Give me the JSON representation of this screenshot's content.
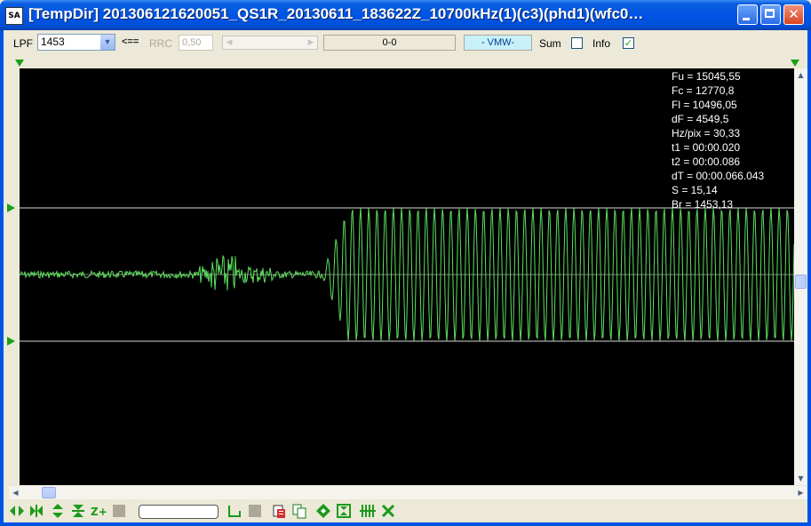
{
  "window": {
    "icon_text": "SA",
    "title": "[TempDir] 201306121620051_QS1R_20130611_183622Z_10700kHz(1)(c3)(phd1)(wfc0…",
    "close_glyph": "✕"
  },
  "toolbar": {
    "lpf_label": "LPF",
    "lpf_value": "1453",
    "apply_arrow": "<==",
    "rrc_label": "RRC",
    "rrc_value": "0,50",
    "range_text": "0-0",
    "mode_text": "- VMW-",
    "sum_label": "Sum",
    "sum_checked": false,
    "info_label": "Info",
    "info_checked": true
  },
  "info_panel": [
    "Fu = 15045,55",
    "Fc = 12770,8",
    "Fl = 10496,05",
    "dF = 4549,5",
    "Hz/pix = 30,33",
    "t1 = 00:00.020",
    "t2 = 00:00.086",
    "dT = 00:00.066.043",
    "S = 15,14",
    "Br = 1453,13"
  ],
  "colors": {
    "trace": "#5ee05e",
    "background": "#000000",
    "marker_lines": "#d8d8d8",
    "markers": "#1aa01a",
    "info_text": "#ffffff"
  },
  "icons": {
    "toolbar": [
      "chevron-down-icon",
      "scroll-left-icon",
      "scroll-right-icon",
      "checkmark-icon"
    ],
    "bottom": [
      "expand-horizontal-icon",
      "compress-horizontal-icon",
      "expand-vertical-icon",
      "compress-vertical-icon",
      "zoom-plus-icon",
      "gray-square-icon",
      "step-icon",
      "gray-square-icon",
      "clipboard-copy-icon",
      "copy-icon",
      "diamond-icon",
      "fit-icon",
      "bars-icon",
      "cross-arrows-icon"
    ]
  }
}
